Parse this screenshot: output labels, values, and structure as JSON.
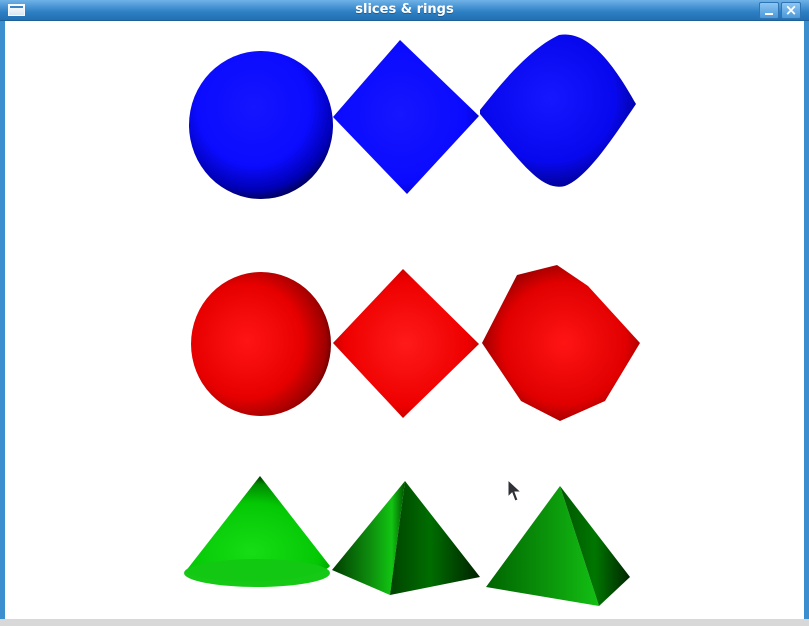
{
  "window": {
    "title": "slices & rings"
  },
  "icons": {
    "menu": "window-menu-icon",
    "minimize": "minimize-icon",
    "close": "close-icon",
    "cursor": "mouse-pointer-icon"
  },
  "colors": {
    "blue": "#1010ff",
    "red": "#ff1010",
    "green": "#10c010",
    "background": "#ffffff",
    "titlebar": "#2d7fc3"
  },
  "scene": {
    "rows": [
      {
        "color": "blue",
        "objects": [
          "sphere",
          "diamond",
          "rounded diamond"
        ]
      },
      {
        "color": "red",
        "objects": [
          "sphere",
          "diamond",
          "octagon"
        ]
      },
      {
        "color": "green",
        "objects": [
          "cone",
          "pyramid",
          "square pyramid"
        ]
      }
    ]
  }
}
